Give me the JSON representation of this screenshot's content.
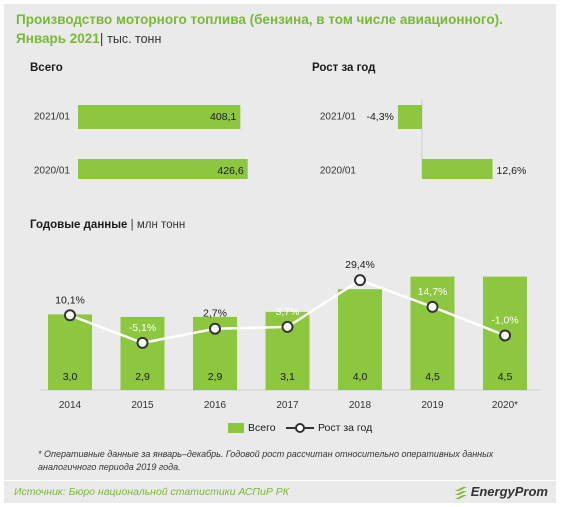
{
  "header": {
    "title_line1": "Производство моторного топлива (бензина, в том числе авиационного).",
    "title_line2": "Январь 2021",
    "title_sep": "|",
    "unit": "тыс. тонн"
  },
  "sections": {
    "total_title": "Всего",
    "growth_title": "Рост за год",
    "annual_title": "Годовые данные",
    "annual_sep": "|",
    "annual_unit": "млн тонн"
  },
  "footnote": {
    "line1": "* Оперативные данные за январь–декабрь. Годовой рост рассчитан относительно оперативных данных",
    "line2": "аналогичного периода 2019 года."
  },
  "source": {
    "text": "Источник: Бюро национальной  статистики АСПиР РК",
    "logo": "EnergyProm",
    "logo_icon": "energyprom-logo-icon"
  },
  "colors": {
    "bar": "#8dc63f",
    "accent": "#79b934",
    "line": "#ffffff",
    "panel": "#eaeaea"
  },
  "chart_data": [
    {
      "type": "bar",
      "orientation": "horizontal",
      "title": "Всего",
      "categories": [
        "2021/01",
        "2020/01"
      ],
      "values": [
        408.1,
        426.6
      ],
      "value_labels": [
        "408,1",
        "426,6"
      ],
      "xlim": [
        0,
        450
      ]
    },
    {
      "type": "bar",
      "orientation": "horizontal",
      "title": "Рост за год",
      "categories": [
        "2021/01",
        "2020/01"
      ],
      "values": [
        -4.3,
        12.6
      ],
      "value_labels": [
        "-4,3%",
        "12,6%"
      ],
      "xlim": [
        -8,
        25
      ]
    },
    {
      "type": "bar+line",
      "title": "Годовые данные",
      "categories": [
        "2014",
        "2015",
        "2016",
        "2017",
        "2018",
        "2019",
        "2020*"
      ],
      "series": [
        {
          "name": "Всего",
          "type": "bar",
          "values": [
            3.0,
            2.9,
            2.9,
            3.1,
            4.0,
            4.5,
            4.5
          ],
          "value_labels": [
            "3,0",
            "2,9",
            "2,9",
            "3,1",
            "4,0",
            "4,5",
            "4,5"
          ]
        },
        {
          "name": "Рост за год",
          "type": "line",
          "values": [
            10.1,
            -5.1,
            2.7,
            3.7,
            29.4,
            14.7,
            -1.0
          ],
          "value_labels": [
            "10,1%",
            "-5,1%",
            "2,7%",
            "3,7%",
            "29,4%",
            "14,7%",
            "-1,0%"
          ]
        }
      ],
      "bar_ylim": [
        0,
        5.0
      ],
      "line_ylim": [
        -20,
        35
      ],
      "legend": "bottom-center"
    }
  ]
}
